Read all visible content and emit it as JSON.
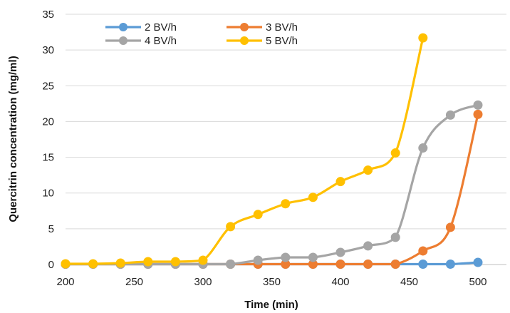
{
  "chart_data": {
    "type": "line",
    "title": "",
    "xlabel": "Time (min)",
    "ylabel": "Quercitrin concentration  (mg/ml)",
    "xlim": [
      200,
      500
    ],
    "ylim": [
      0,
      35
    ],
    "x_ticks": [
      200,
      250,
      300,
      350,
      400,
      450,
      500
    ],
    "y_ticks": [
      0,
      5,
      10,
      15,
      20,
      25,
      30,
      35
    ],
    "x_tick_labels": [
      "200",
      "250",
      "300",
      "350",
      "400",
      "450",
      "500"
    ],
    "y_tick_labels": [
      "0",
      "5",
      "10",
      "15",
      "20",
      "25",
      "30",
      "35"
    ],
    "grid": "horizontal",
    "legend_position": "top-left",
    "series": [
      {
        "name": "2 BV/h",
        "color": "#5B9BD5",
        "points": [
          [
            200,
            0.05
          ],
          [
            220,
            0.05
          ],
          [
            240,
            0.05
          ],
          [
            260,
            0.05
          ],
          [
            280,
            0.05
          ],
          [
            300,
            0.05
          ],
          [
            320,
            0.05
          ],
          [
            340,
            0.05
          ],
          [
            360,
            0.05
          ],
          [
            380,
            0.05
          ],
          [
            400,
            0.05
          ],
          [
            420,
            0.05
          ],
          [
            440,
            0.05
          ],
          [
            460,
            0.05
          ],
          [
            480,
            0.05
          ],
          [
            500,
            0.3
          ]
        ]
      },
      {
        "name": "3 BV/h",
        "color": "#ED7D31",
        "points": [
          [
            200,
            0.05
          ],
          [
            220,
            0.05
          ],
          [
            240,
            0.05
          ],
          [
            260,
            0.05
          ],
          [
            280,
            0.05
          ],
          [
            300,
            0.05
          ],
          [
            320,
            0.05
          ],
          [
            340,
            0.05
          ],
          [
            360,
            0.05
          ],
          [
            380,
            0.05
          ],
          [
            400,
            0.05
          ],
          [
            420,
            0.05
          ],
          [
            440,
            0.05
          ],
          [
            460,
            1.9
          ],
          [
            480,
            5.2
          ],
          [
            500,
            21.0
          ]
        ]
      },
      {
        "name": "4 BV/h",
        "color": "#A5A5A5",
        "points": [
          [
            200,
            0.05
          ],
          [
            220,
            0.05
          ],
          [
            240,
            0.05
          ],
          [
            260,
            0.05
          ],
          [
            280,
            0.05
          ],
          [
            300,
            0.05
          ],
          [
            320,
            0.05
          ],
          [
            340,
            0.6
          ],
          [
            360,
            1.0
          ],
          [
            380,
            1.0
          ],
          [
            400,
            1.7
          ],
          [
            420,
            2.6
          ],
          [
            440,
            3.8
          ],
          [
            460,
            16.3
          ],
          [
            480,
            20.9
          ],
          [
            500,
            22.3
          ]
        ]
      },
      {
        "name": "5 BV/h",
        "color": "#FFC000",
        "points": [
          [
            200,
            0.1
          ],
          [
            220,
            0.1
          ],
          [
            240,
            0.2
          ],
          [
            260,
            0.4
          ],
          [
            280,
            0.4
          ],
          [
            300,
            0.6
          ],
          [
            320,
            5.3
          ],
          [
            340,
            7.0
          ],
          [
            360,
            8.5
          ],
          [
            380,
            9.4
          ],
          [
            400,
            11.6
          ],
          [
            420,
            13.2
          ],
          [
            440,
            15.6
          ],
          [
            460,
            31.7
          ]
        ]
      }
    ]
  }
}
